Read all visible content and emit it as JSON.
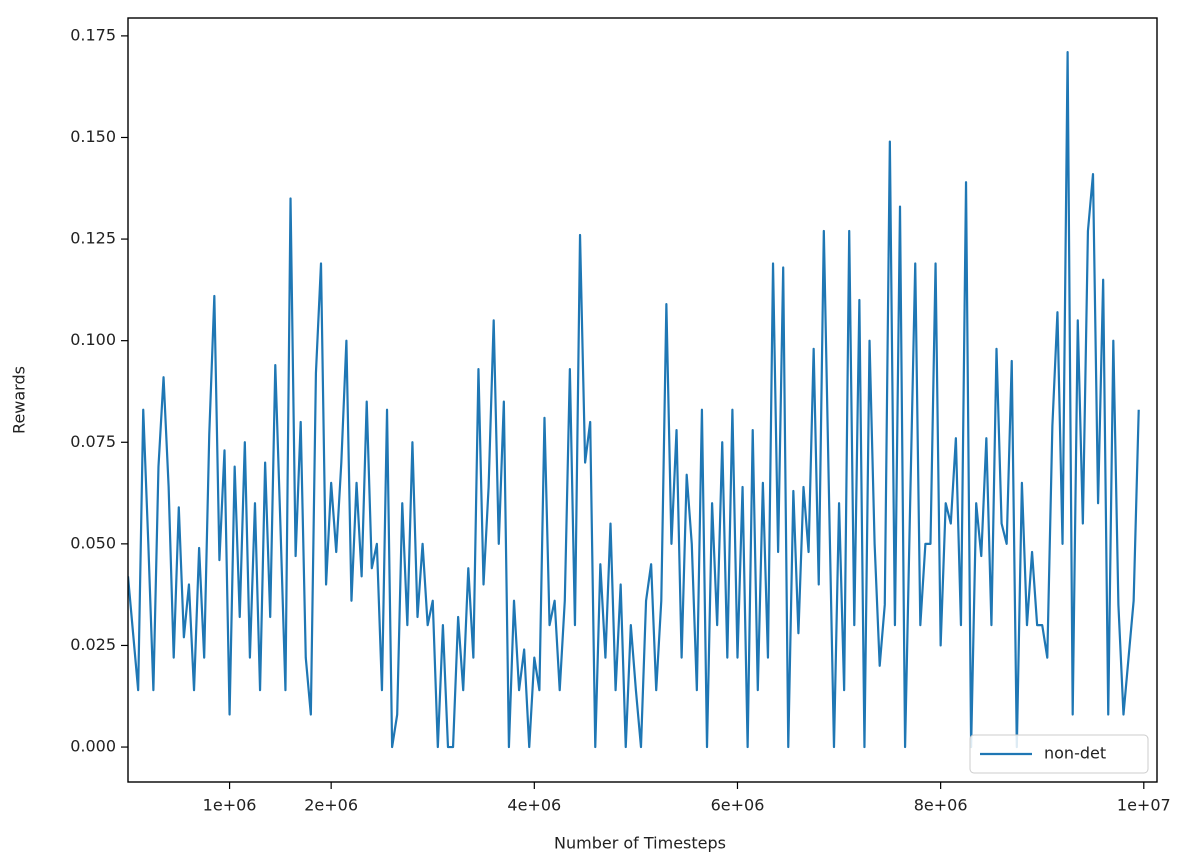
{
  "chart_data": {
    "type": "line",
    "xlabel": "Number of Timesteps",
    "ylabel": "Rewards",
    "x": [
      0,
      50000,
      100000,
      150000,
      200000,
      250000,
      300000,
      350000,
      400000,
      450000,
      500000,
      550000,
      600000,
      650000,
      700000,
      750000,
      800000,
      850000,
      900000,
      950000,
      1000000,
      1050000,
      1100000,
      1150000,
      1200000,
      1250000,
      1300000,
      1350000,
      1400000,
      1450000,
      1500000,
      1550000,
      1600000,
      1650000,
      1700000,
      1750000,
      1800000,
      1850000,
      1900000,
      1950000,
      2000000,
      2050000,
      2100000,
      2150000,
      2200000,
      2250000,
      2300000,
      2350000,
      2400000,
      2450000,
      2500000,
      2550000,
      2600000,
      2650000,
      2700000,
      2750000,
      2800000,
      2850000,
      2900000,
      2950000,
      3000000,
      3050000,
      3100000,
      3150000,
      3200000,
      3250000,
      3300000,
      3350000,
      3400000,
      3450000,
      3500000,
      3550000,
      3600000,
      3650000,
      3700000,
      3750000,
      3800000,
      3850000,
      3900000,
      3950000,
      4000000,
      4050000,
      4100000,
      4150000,
      4200000,
      4250000,
      4300000,
      4350000,
      4400000,
      4450000,
      4500000,
      4550000,
      4600000,
      4650000,
      4700000,
      4750000,
      4800000,
      4850000,
      4900000,
      4950000,
      5000000,
      5050000,
      5100000,
      5150000,
      5200000,
      5250000,
      5300000,
      5350000,
      5400000,
      5450000,
      5500000,
      5550000,
      5600000,
      5650000,
      5700000,
      5750000,
      5800000,
      5850000,
      5900000,
      5950000,
      6000000,
      6050000,
      6100000,
      6150000,
      6200000,
      6250000,
      6300000,
      6350000,
      6400000,
      6450000,
      6500000,
      6550000,
      6600000,
      6650000,
      6700000,
      6750000,
      6800000,
      6850000,
      6900000,
      6950000,
      7000000,
      7050000,
      7100000,
      7150000,
      7200000,
      7250000,
      7300000,
      7350000,
      7400000,
      7450000,
      7500000,
      7550000,
      7600000,
      7650000,
      7700000,
      7750000,
      7800000,
      7850000,
      7900000,
      7950000,
      8000000,
      8050000,
      8100000,
      8150000,
      8200000,
      8250000,
      8300000,
      8350000,
      8400000,
      8450000,
      8500000,
      8550000,
      8600000,
      8650000,
      8700000,
      8750000,
      8800000,
      8850000,
      8900000,
      8950000,
      9000000,
      9050000,
      9100000,
      9150000,
      9200000,
      9250000,
      9300000,
      9350000,
      9400000,
      9450000,
      9500000,
      9550000,
      9600000,
      9650000,
      9700000,
      9750000,
      9800000,
      9850000,
      9900000,
      9950000
    ],
    "series": [
      {
        "name": "non-det",
        "color": "#1f77b4",
        "values": [
          0.042,
          0.028,
          0.014,
          0.083,
          0.05,
          0.014,
          0.069,
          0.091,
          0.064,
          0.022,
          0.059,
          0.027,
          0.04,
          0.014,
          0.049,
          0.022,
          0.077,
          0.111,
          0.046,
          0.073,
          0.008,
          0.069,
          0.032,
          0.075,
          0.022,
          0.06,
          0.014,
          0.07,
          0.032,
          0.094,
          0.055,
          0.014,
          0.135,
          0.047,
          0.08,
          0.022,
          0.008,
          0.092,
          0.119,
          0.04,
          0.065,
          0.048,
          0.07,
          0.1,
          0.036,
          0.065,
          0.042,
          0.085,
          0.044,
          0.05,
          0.014,
          0.083,
          0.0,
          0.008,
          0.06,
          0.03,
          0.075,
          0.032,
          0.05,
          0.03,
          0.036,
          0.0,
          0.03,
          0.0,
          0.0,
          0.032,
          0.014,
          0.044,
          0.022,
          0.093,
          0.04,
          0.064,
          0.105,
          0.05,
          0.085,
          0.0,
          0.036,
          0.014,
          0.024,
          0.0,
          0.022,
          0.014,
          0.081,
          0.03,
          0.036,
          0.014,
          0.036,
          0.093,
          0.03,
          0.126,
          0.07,
          0.08,
          0.0,
          0.045,
          0.022,
          0.055,
          0.014,
          0.04,
          0.0,
          0.03,
          0.014,
          0.0,
          0.036,
          0.045,
          0.014,
          0.036,
          0.109,
          0.05,
          0.078,
          0.022,
          0.067,
          0.05,
          0.014,
          0.083,
          0.0,
          0.06,
          0.03,
          0.075,
          0.022,
          0.083,
          0.022,
          0.064,
          0.0,
          0.078,
          0.014,
          0.065,
          0.022,
          0.119,
          0.048,
          0.118,
          0.0,
          0.063,
          0.028,
          0.064,
          0.048,
          0.098,
          0.04,
          0.127,
          0.063,
          0.0,
          0.06,
          0.014,
          0.127,
          0.03,
          0.11,
          0.0,
          0.1,
          0.05,
          0.02,
          0.035,
          0.149,
          0.03,
          0.133,
          0.0,
          0.06,
          0.119,
          0.03,
          0.05,
          0.05,
          0.119,
          0.025,
          0.06,
          0.055,
          0.076,
          0.03,
          0.139,
          0.0,
          0.06,
          0.047,
          0.076,
          0.03,
          0.098,
          0.055,
          0.05,
          0.095,
          0.0,
          0.065,
          0.03,
          0.048,
          0.03,
          0.03,
          0.022,
          0.079,
          0.107,
          0.05,
          0.171,
          0.008,
          0.105,
          0.055,
          0.127,
          0.141,
          0.06,
          0.115,
          0.008,
          0.1,
          0.035,
          0.008,
          0.022,
          0.036,
          0.083
        ]
      }
    ],
    "xlim": [
      0,
      10130000
    ],
    "ylim": [
      -0.0086,
      0.1794
    ],
    "xticks": [
      {
        "value": 1000000,
        "label": "1e+06"
      },
      {
        "value": 2000000,
        "label": "2e+06"
      },
      {
        "value": 4000000,
        "label": "4e+06"
      },
      {
        "value": 6000000,
        "label": "6e+06"
      },
      {
        "value": 8000000,
        "label": "8e+06"
      },
      {
        "value": 10000000,
        "label": "1e+07"
      }
    ],
    "yticks": [
      {
        "value": 0,
        "label": "0.000"
      },
      {
        "value": 0.025,
        "label": "0.025"
      },
      {
        "value": 0.05,
        "label": "0.050"
      },
      {
        "value": 0.075,
        "label": "0.075"
      },
      {
        "value": 0.1,
        "label": "0.100"
      },
      {
        "value": 0.125,
        "label": "0.125"
      },
      {
        "value": 0.15,
        "label": "0.150"
      },
      {
        "value": 0.175,
        "label": "0.175"
      }
    ],
    "legend": "lower right"
  }
}
